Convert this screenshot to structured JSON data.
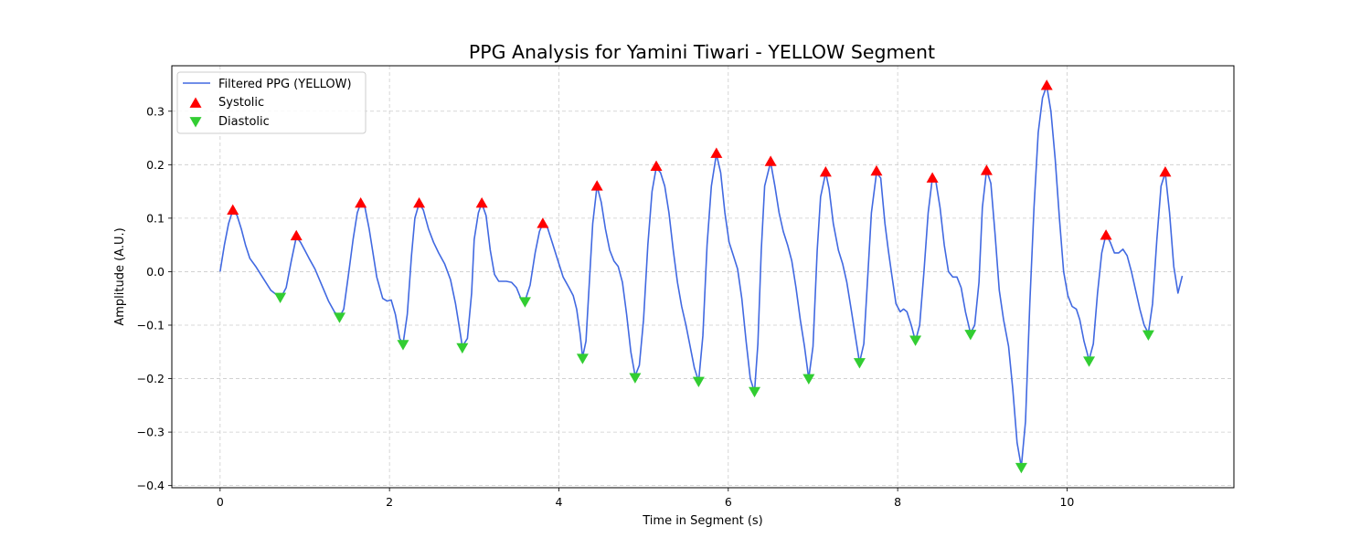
{
  "chart_data": {
    "type": "line",
    "title": "PPG Analysis for Yamini Tiwari - YELLOW Segment",
    "xlabel": "Time in Segment (s)",
    "ylabel": "Amplitude (A.U.)",
    "xlim": [
      -0.57,
      11.97
    ],
    "ylim": [
      -0.404,
      0.385
    ],
    "x_ticks": [
      0,
      2,
      4,
      6,
      8,
      10
    ],
    "y_ticks": [
      -0.4,
      -0.3,
      -0.2,
      -0.1,
      0.0,
      0.1,
      0.2,
      0.3
    ],
    "x_tick_labels": [
      "0",
      "2",
      "4",
      "6",
      "8",
      "10"
    ],
    "y_tick_labels": [
      "−0.4",
      "−0.3",
      "−0.2",
      "−0.1",
      "0.0",
      "0.1",
      "0.2",
      "0.3"
    ],
    "grid": true,
    "legend_position": "top-left",
    "series": [
      {
        "name": "Filtered PPG (YELLOW)",
        "kind": "line",
        "color": "#4169e1",
        "points": [
          [
            0.0,
            0.0
          ],
          [
            0.05,
            0.05
          ],
          [
            0.1,
            0.09
          ],
          [
            0.15,
            0.115
          ],
          [
            0.2,
            0.105
          ],
          [
            0.25,
            0.08
          ],
          [
            0.3,
            0.05
          ],
          [
            0.35,
            0.025
          ],
          [
            0.42,
            0.01
          ],
          [
            0.5,
            -0.01
          ],
          [
            0.6,
            -0.035
          ],
          [
            0.68,
            -0.045
          ],
          [
            0.72,
            -0.048
          ],
          [
            0.78,
            -0.03
          ],
          [
            0.84,
            0.02
          ],
          [
            0.9,
            0.065
          ],
          [
            0.95,
            0.055
          ],
          [
            1.0,
            0.04
          ],
          [
            1.05,
            0.025
          ],
          [
            1.12,
            0.005
          ],
          [
            1.2,
            -0.025
          ],
          [
            1.28,
            -0.055
          ],
          [
            1.35,
            -0.075
          ],
          [
            1.41,
            -0.085
          ],
          [
            1.46,
            -0.07
          ],
          [
            1.52,
            0.0
          ],
          [
            1.57,
            0.06
          ],
          [
            1.62,
            0.11
          ],
          [
            1.66,
            0.128
          ],
          [
            1.71,
            0.12
          ],
          [
            1.76,
            0.08
          ],
          [
            1.8,
            0.04
          ],
          [
            1.85,
            -0.01
          ],
          [
            1.92,
            -0.05
          ],
          [
            1.97,
            -0.055
          ],
          [
            2.02,
            -0.053
          ],
          [
            2.07,
            -0.08
          ],
          [
            2.12,
            -0.125
          ],
          [
            2.16,
            -0.135
          ],
          [
            2.21,
            -0.08
          ],
          [
            2.26,
            0.03
          ],
          [
            2.3,
            0.1
          ],
          [
            2.35,
            0.128
          ],
          [
            2.4,
            0.115
          ],
          [
            2.46,
            0.08
          ],
          [
            2.52,
            0.055
          ],
          [
            2.58,
            0.035
          ],
          [
            2.65,
            0.015
          ],
          [
            2.72,
            -0.015
          ],
          [
            2.78,
            -0.06
          ],
          [
            2.83,
            -0.11
          ],
          [
            2.86,
            -0.14
          ],
          [
            2.92,
            -0.125
          ],
          [
            2.97,
            -0.04
          ],
          [
            3.0,
            0.06
          ],
          [
            3.05,
            0.11
          ],
          [
            3.09,
            0.128
          ],
          [
            3.14,
            0.105
          ],
          [
            3.19,
            0.04
          ],
          [
            3.24,
            -0.005
          ],
          [
            3.29,
            -0.018
          ],
          [
            3.38,
            -0.018
          ],
          [
            3.44,
            -0.02
          ],
          [
            3.5,
            -0.03
          ],
          [
            3.55,
            -0.05
          ],
          [
            3.6,
            -0.055
          ],
          [
            3.66,
            -0.025
          ],
          [
            3.72,
            0.035
          ],
          [
            3.77,
            0.075
          ],
          [
            3.81,
            0.09
          ],
          [
            3.86,
            0.085
          ],
          [
            3.92,
            0.055
          ],
          [
            3.98,
            0.025
          ],
          [
            4.05,
            -0.01
          ],
          [
            4.12,
            -0.03
          ],
          [
            4.17,
            -0.045
          ],
          [
            4.21,
            -0.07
          ],
          [
            4.25,
            -0.115
          ],
          [
            4.28,
            -0.16
          ],
          [
            4.32,
            -0.13
          ],
          [
            4.36,
            -0.02
          ],
          [
            4.4,
            0.09
          ],
          [
            4.45,
            0.16
          ],
          [
            4.5,
            0.13
          ],
          [
            4.55,
            0.08
          ],
          [
            4.6,
            0.04
          ],
          [
            4.65,
            0.02
          ],
          [
            4.7,
            0.01
          ],
          [
            4.75,
            -0.02
          ],
          [
            4.8,
            -0.08
          ],
          [
            4.85,
            -0.15
          ],
          [
            4.9,
            -0.195
          ],
          [
            4.95,
            -0.175
          ],
          [
            5.0,
            -0.09
          ],
          [
            5.05,
            0.05
          ],
          [
            5.1,
            0.15
          ],
          [
            5.15,
            0.195
          ],
          [
            5.2,
            0.185
          ],
          [
            5.25,
            0.16
          ],
          [
            5.3,
            0.11
          ],
          [
            5.35,
            0.04
          ],
          [
            5.4,
            -0.02
          ],
          [
            5.45,
            -0.065
          ],
          [
            5.5,
            -0.1
          ],
          [
            5.55,
            -0.14
          ],
          [
            5.6,
            -0.18
          ],
          [
            5.65,
            -0.205
          ],
          [
            5.7,
            -0.12
          ],
          [
            5.75,
            0.05
          ],
          [
            5.8,
            0.16
          ],
          [
            5.86,
            0.22
          ],
          [
            5.91,
            0.185
          ],
          [
            5.96,
            0.11
          ],
          [
            6.01,
            0.055
          ],
          [
            6.06,
            0.03
          ],
          [
            6.11,
            0.005
          ],
          [
            6.16,
            -0.05
          ],
          [
            6.21,
            -0.13
          ],
          [
            6.26,
            -0.2
          ],
          [
            6.31,
            -0.225
          ],
          [
            6.35,
            -0.135
          ],
          [
            6.39,
            0.04
          ],
          [
            6.43,
            0.16
          ],
          [
            6.5,
            0.205
          ],
          [
            6.55,
            0.16
          ],
          [
            6.6,
            0.11
          ],
          [
            6.65,
            0.075
          ],
          [
            6.7,
            0.05
          ],
          [
            6.75,
            0.02
          ],
          [
            6.8,
            -0.03
          ],
          [
            6.85,
            -0.09
          ],
          [
            6.9,
            -0.14
          ],
          [
            6.95,
            -0.2
          ],
          [
            7.0,
            -0.14
          ],
          [
            7.05,
            0.04
          ],
          [
            7.09,
            0.14
          ],
          [
            7.15,
            0.185
          ],
          [
            7.19,
            0.155
          ],
          [
            7.24,
            0.09
          ],
          [
            7.3,
            0.04
          ],
          [
            7.35,
            0.015
          ],
          [
            7.4,
            -0.02
          ],
          [
            7.45,
            -0.07
          ],
          [
            7.5,
            -0.12
          ],
          [
            7.55,
            -0.17
          ],
          [
            7.6,
            -0.135
          ],
          [
            7.65,
            0.0
          ],
          [
            7.69,
            0.11
          ],
          [
            7.75,
            0.185
          ],
          [
            7.8,
            0.175
          ],
          [
            7.85,
            0.09
          ],
          [
            7.89,
            0.04
          ],
          [
            7.93,
            -0.005
          ],
          [
            7.98,
            -0.06
          ],
          [
            8.03,
            -0.075
          ],
          [
            8.07,
            -0.07
          ],
          [
            8.11,
            -0.075
          ],
          [
            8.16,
            -0.1
          ],
          [
            8.21,
            -0.13
          ],
          [
            8.26,
            -0.1
          ],
          [
            8.31,
            0.0
          ],
          [
            8.36,
            0.11
          ],
          [
            8.41,
            0.175
          ],
          [
            8.45,
            0.17
          ],
          [
            8.5,
            0.12
          ],
          [
            8.55,
            0.05
          ],
          [
            8.6,
            0.0
          ],
          [
            8.65,
            -0.01
          ],
          [
            8.7,
            -0.01
          ],
          [
            8.75,
            -0.03
          ],
          [
            8.8,
            -0.075
          ],
          [
            8.86,
            -0.115
          ],
          [
            8.91,
            -0.1
          ],
          [
            8.96,
            -0.02
          ],
          [
            9.0,
            0.12
          ],
          [
            9.05,
            0.19
          ],
          [
            9.1,
            0.165
          ],
          [
            9.15,
            0.07
          ],
          [
            9.2,
            -0.035
          ],
          [
            9.25,
            -0.09
          ],
          [
            9.31,
            -0.14
          ],
          [
            9.36,
            -0.22
          ],
          [
            9.41,
            -0.32
          ],
          [
            9.46,
            -0.365
          ],
          [
            9.51,
            -0.28
          ],
          [
            9.56,
            -0.06
          ],
          [
            9.61,
            0.12
          ],
          [
            9.66,
            0.26
          ],
          [
            9.71,
            0.325
          ],
          [
            9.76,
            0.348
          ],
          [
            9.81,
            0.3
          ],
          [
            9.86,
            0.21
          ],
          [
            9.91,
            0.1
          ],
          [
            9.96,
            0.0
          ],
          [
            10.01,
            -0.045
          ],
          [
            10.06,
            -0.065
          ],
          [
            10.11,
            -0.07
          ],
          [
            10.15,
            -0.09
          ],
          [
            10.2,
            -0.13
          ],
          [
            10.26,
            -0.165
          ],
          [
            10.31,
            -0.135
          ],
          [
            10.36,
            -0.04
          ],
          [
            10.41,
            0.035
          ],
          [
            10.46,
            0.07
          ],
          [
            10.51,
            0.055
          ],
          [
            10.56,
            0.035
          ],
          [
            10.61,
            0.035
          ],
          [
            10.66,
            0.042
          ],
          [
            10.71,
            0.03
          ],
          [
            10.76,
            0.0
          ],
          [
            10.81,
            -0.035
          ],
          [
            10.86,
            -0.07
          ],
          [
            10.91,
            -0.1
          ],
          [
            10.96,
            -0.115
          ],
          [
            11.01,
            -0.06
          ],
          [
            11.06,
            0.06
          ],
          [
            11.11,
            0.16
          ],
          [
            11.16,
            0.185
          ],
          [
            11.21,
            0.11
          ],
          [
            11.26,
            0.01
          ],
          [
            11.31,
            -0.04
          ],
          [
            11.36,
            -0.008
          ]
        ]
      },
      {
        "name": "Systolic",
        "kind": "marker",
        "marker": "triangle-up",
        "color": "#ff0000",
        "x": [
          0.15,
          0.9,
          1.66,
          2.35,
          3.09,
          3.81,
          4.45,
          5.15,
          5.86,
          6.5,
          7.15,
          7.75,
          8.41,
          9.05,
          9.76,
          10.46,
          11.16
        ],
        "y": [
          0.115,
          0.067,
          0.128,
          0.128,
          0.128,
          0.09,
          0.16,
          0.197,
          0.221,
          0.206,
          0.186,
          0.188,
          0.175,
          0.189,
          0.348,
          0.068,
          0.186
        ]
      },
      {
        "name": "Diastolic",
        "kind": "marker",
        "marker": "triangle-down",
        "color": "#32cd32",
        "x": [
          0.71,
          1.41,
          2.16,
          2.86,
          3.6,
          4.28,
          4.9,
          5.65,
          6.31,
          6.95,
          7.55,
          8.21,
          8.86,
          9.46,
          10.26,
          10.96
        ],
        "y": [
          -0.048,
          -0.085,
          -0.136,
          -0.142,
          -0.056,
          -0.162,
          -0.198,
          -0.205,
          -0.224,
          -0.2,
          -0.17,
          -0.128,
          -0.117,
          -0.366,
          -0.167,
          -0.118
        ]
      }
    ]
  }
}
